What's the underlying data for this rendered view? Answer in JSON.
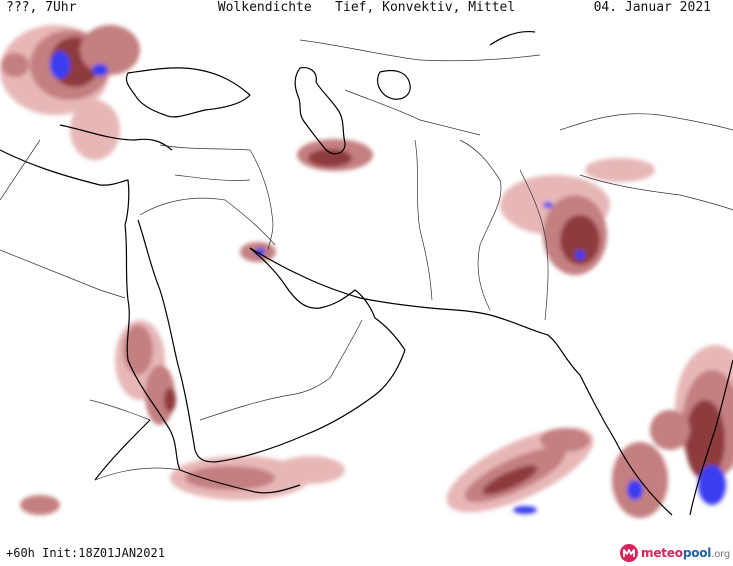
{
  "header": {
    "left": "???, 7Uhr",
    "title": "Wolkendichte   Tief, Konvektiv, Mittel",
    "date": "04. Januar 2021"
  },
  "footer": {
    "left": "+60h Init:18Z01JAN2021"
  },
  "brand": {
    "part1": "meteo",
    "part2": "pool",
    "part3": ".org"
  },
  "colors": {
    "coastline": "#000000",
    "border": "#333333",
    "cloud_light": "#e7b7b7",
    "cloud_medium": "#c47f80",
    "cloud_dense": "#8e3a3c",
    "cloud_max": "#3a3cf0",
    "brand_red": "#d9245a",
    "brand_blue": "#1f5fa6"
  }
}
